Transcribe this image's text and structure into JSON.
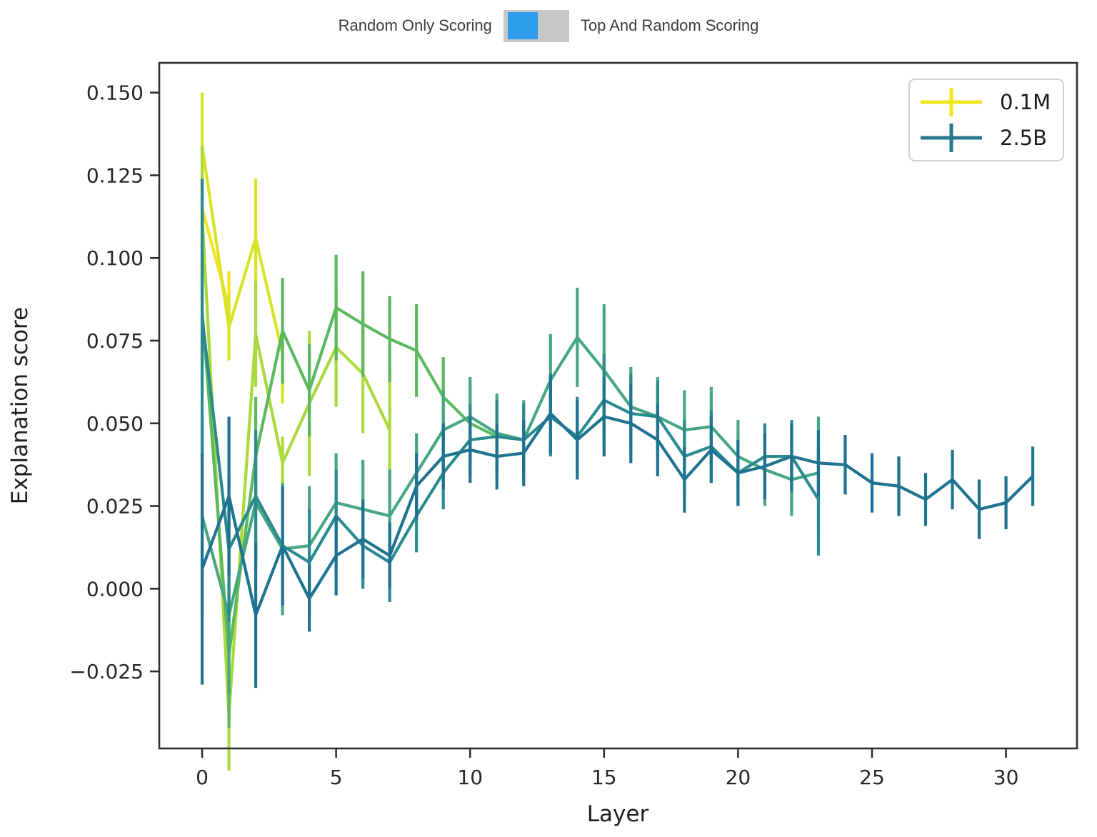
{
  "toggle": {
    "left_label": "Random Only Scoring",
    "right_label": "Top And Random Scoring",
    "selected": "Random Only Scoring",
    "active_color": "#2d9cec",
    "track_color": "#c7c7c7"
  },
  "chart_data": {
    "type": "line",
    "title": "",
    "xlabel": "Layer",
    "ylabel": "Explanation score",
    "grid": false,
    "error_bars": true,
    "xlim": [
      -1.6,
      32.65
    ],
    "ylim": [
      -0.0483,
      0.159
    ],
    "x_ticks": [
      0,
      5,
      10,
      15,
      20,
      25,
      30
    ],
    "y_ticks": [
      0.15,
      0.125,
      0.1,
      0.075,
      0.05,
      0.025,
      0.0,
      -0.025
    ],
    "y_tick_labels": [
      "0.150",
      "0.125",
      "0.100",
      "0.075",
      "0.050",
      "0.025",
      "0.000",
      "−0.025"
    ],
    "axis_color": "#2f2f2f",
    "tick_label_color": "#262626",
    "legend": {
      "position": "upper right",
      "entries": [
        {
          "label": "0.1M",
          "color": "#f2e51e"
        },
        {
          "label": "2.5B",
          "color": "#26798f"
        }
      ]
    },
    "series": [
      {
        "label": "0.1M",
        "color": "#f2e51e",
        "x": [
          0,
          1
        ],
        "y": [
          0.115,
          0.085
        ],
        "yerr": [
          0.012,
          0.011
        ]
      },
      {
        "label": "",
        "color": "#d9e326",
        "x": [
          0,
          1,
          2,
          3
        ],
        "y": [
          0.134,
          0.079,
          0.106,
          0.071
        ],
        "yerr": [
          0.016,
          0.01,
          0.018,
          0.015
        ]
      },
      {
        "label": "",
        "color": "#a9d93d",
        "x": [
          0,
          1,
          2,
          3,
          4,
          5,
          6,
          7
        ],
        "y": [
          0.113,
          -0.038,
          0.077,
          0.038,
          0.056,
          0.073,
          0.065,
          0.048
        ],
        "yerr": [
          0.021,
          0.017,
          0.016,
          0.008,
          0.022,
          0.018,
          0.018,
          0.02
        ]
      },
      {
        "label": "",
        "color": "#5cb85e",
        "x": [
          0,
          1,
          2,
          3,
          4,
          5,
          6,
          7,
          8,
          9,
          10,
          11
        ],
        "y": [
          0.084,
          -0.02,
          0.04,
          0.078,
          0.06,
          0.085,
          0.08,
          0.0755,
          0.072,
          0.058,
          0.05,
          0.046
        ],
        "yerr": [
          0.02,
          0.022,
          0.018,
          0.016,
          0.014,
          0.016,
          0.016,
          0.013,
          0.014,
          0.012,
          0.012,
          0.012
        ]
      },
      {
        "label": "",
        "color": "#47a682",
        "x": [
          0,
          1,
          2,
          3,
          4,
          5,
          6,
          7,
          8,
          9,
          10,
          11,
          12,
          13,
          14,
          15,
          16,
          17,
          18,
          19,
          20,
          21,
          22,
          23
        ],
        "y": [
          0.022,
          -0.008,
          0.026,
          0.012,
          0.013,
          0.026,
          0.024,
          0.022,
          0.035,
          0.048,
          0.052,
          0.047,
          0.045,
          0.063,
          0.076,
          0.066,
          0.055,
          0.052,
          0.048,
          0.049,
          0.04,
          0.036,
          0.033,
          0.035
        ],
        "yerr": [
          0.03,
          0.024,
          0.02,
          0.02,
          0.018,
          0.015,
          0.015,
          0.014,
          0.012,
          0.012,
          0.012,
          0.012,
          0.012,
          0.014,
          0.015,
          0.02,
          0.012,
          0.012,
          0.012,
          0.012,
          0.011,
          0.011,
          0.011,
          0.017
        ]
      },
      {
        "label": "",
        "color": "#2b8a8e",
        "x": [
          0,
          1,
          2,
          3,
          4,
          5,
          6,
          7,
          8,
          9,
          10,
          11,
          12,
          13,
          14,
          15,
          16,
          17,
          18,
          19,
          20,
          21,
          22,
          23
        ],
        "y": [
          0.082,
          0.012,
          0.028,
          0.013,
          0.008,
          0.022,
          0.013,
          0.008,
          0.022,
          0.035,
          0.045,
          0.046,
          0.045,
          0.052,
          0.046,
          0.057,
          0.053,
          0.052,
          0.04,
          0.043,
          0.035,
          0.04,
          0.04,
          0.027
        ],
        "yerr": [
          0.042,
          0.022,
          0.02,
          0.018,
          0.016,
          0.014,
          0.013,
          0.012,
          0.011,
          0.011,
          0.011,
          0.011,
          0.011,
          0.012,
          0.012,
          0.014,
          0.012,
          0.011,
          0.011,
          0.011,
          0.01,
          0.01,
          0.011,
          0.017
        ]
      },
      {
        "label": "2.5B",
        "color": "#1f7390",
        "x": [
          0,
          1,
          2,
          3,
          4,
          5,
          6,
          7,
          8,
          9,
          10,
          11,
          12,
          13,
          14,
          15,
          16,
          17,
          18,
          19,
          20,
          21,
          22,
          23,
          24,
          25,
          26,
          27,
          28,
          29,
          30,
          31
        ],
        "y": [
          0.006,
          0.028,
          -0.008,
          0.013,
          -0.003,
          0.01,
          0.015,
          0.01,
          0.031,
          0.04,
          0.042,
          0.04,
          0.041,
          0.053,
          0.045,
          0.052,
          0.05,
          0.045,
          0.033,
          0.042,
          0.035,
          0.037,
          0.04,
          0.038,
          0.0375,
          0.032,
          0.031,
          0.027,
          0.033,
          0.024,
          0.026,
          0.034
        ],
        "yerr": [
          0.035,
          0.024,
          0.022,
          0.018,
          0.01,
          0.012,
          0.012,
          0.01,
          0.01,
          0.01,
          0.01,
          0.01,
          0.01,
          0.012,
          0.012,
          0.012,
          0.012,
          0.011,
          0.01,
          0.01,
          0.01,
          0.01,
          0.01,
          0.01,
          0.009,
          0.009,
          0.009,
          0.008,
          0.009,
          0.009,
          0.008,
          0.009
        ]
      }
    ]
  }
}
